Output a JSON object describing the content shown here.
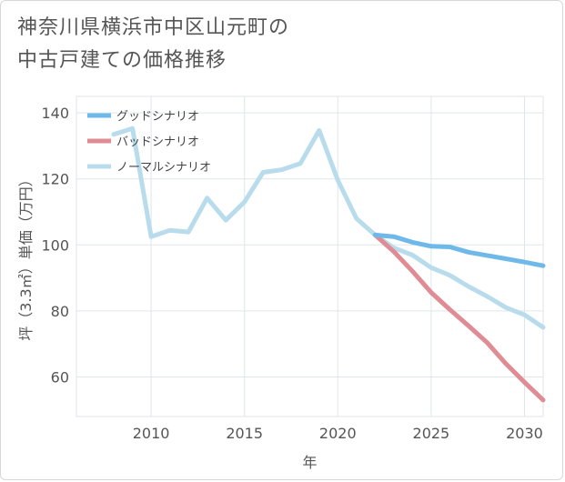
{
  "page": {
    "title": "神奈川県横浜市中区山元町の\n中古戸建ての価格推移"
  },
  "chart_data": {
    "type": "line",
    "title": "神奈川県横浜市中区山元町の中古戸建ての価格推移",
    "xlabel": "年",
    "ylabel": "坪（3.3㎡）単価（万円）",
    "xlim": [
      2006,
      2031
    ],
    "ylim": [
      48,
      145
    ],
    "xticks": [
      2010,
      2015,
      2020,
      2025,
      2030
    ],
    "yticks": [
      60,
      80,
      100,
      120,
      140
    ],
    "grid": true,
    "legend_position": "top-left",
    "series": [
      {
        "name": "グッドシナリオ",
        "color": "#6fb8ea",
        "x": [
          2022,
          2023,
          2024,
          2025,
          2026,
          2027,
          2028,
          2029,
          2030,
          2031
        ],
        "values": [
          103.0,
          102.5,
          100.8,
          99.6,
          99.4,
          97.8,
          96.8,
          95.8,
          94.8,
          93.7
        ]
      },
      {
        "name": "バッドシナリオ",
        "color": "#e08c95",
        "x": [
          2022,
          2023,
          2024,
          2025,
          2026,
          2027,
          2028,
          2029,
          2030,
          2031
        ],
        "values": [
          103.0,
          98.0,
          92.0,
          85.6,
          80.4,
          75.5,
          70.4,
          64.0,
          58.4,
          53.0
        ]
      },
      {
        "name": "ノーマルシナリオ",
        "color": "#b8dcec",
        "x": [
          2008,
          2009,
          2010,
          2011,
          2012,
          2013,
          2014,
          2015,
          2016,
          2017,
          2018,
          2019,
          2020,
          2021,
          2022,
          2023,
          2024,
          2025,
          2026,
          2027,
          2028,
          2029,
          2030,
          2031
        ],
        "values": [
          133.5,
          135.3,
          102.5,
          104.4,
          103.9,
          114.2,
          107.5,
          113.0,
          122.0,
          122.8,
          124.7,
          134.7,
          119.6,
          108.0,
          103.0,
          99.1,
          96.9,
          93.1,
          90.8,
          87.4,
          84.4,
          81.0,
          78.8,
          75.0
        ]
      }
    ]
  }
}
